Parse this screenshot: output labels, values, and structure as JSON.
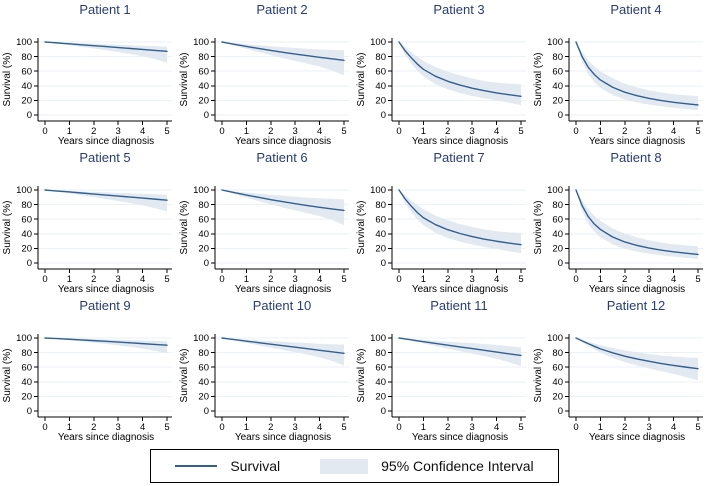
{
  "colors": {
    "line": "#315f90",
    "band": "#e3e9f1",
    "grid": "#e9f2f8",
    "axis": "#000000",
    "text": "#000000",
    "title": "#283c78",
    "background": "#ffffff"
  },
  "legend": {
    "survival_label": "Survival",
    "ci_label": "95% Confidence Interval"
  },
  "chart_data": {
    "type": "line",
    "xlabel": "Years since diagnosis",
    "ylabel": "Survival (%)",
    "xlim": [
      0,
      5
    ],
    "ylim": [
      0,
      100
    ],
    "x_ticks": [
      0,
      1,
      2,
      3,
      4,
      5
    ],
    "y_ticks": [
      0,
      20,
      40,
      60,
      80,
      100
    ],
    "grid": "horizontal",
    "x": [
      0,
      0.25,
      0.5,
      0.75,
      1,
      1.5,
      2,
      2.5,
      3,
      3.5,
      4,
      4.5,
      5
    ],
    "panels": [
      {
        "title": "Patient 1",
        "survival": [
          100,
          99.4,
          98.8,
          98.1,
          97.5,
          96.2,
          95.0,
          93.7,
          92.4,
          91.1,
          89.8,
          88.5,
          87.2
        ],
        "ci_upper": [
          100,
          99.8,
          99.5,
          99.2,
          98.9,
          98.3,
          97.7,
          97.0,
          96.3,
          95.6,
          94.9,
          94.2,
          93.6
        ],
        "ci_lower": [
          100,
          98.9,
          97.8,
          96.7,
          95.6,
          93.4,
          91.1,
          88.7,
          86.2,
          83.5,
          80.5,
          76.5,
          71.5
        ]
      },
      {
        "title": "Patient 2",
        "survival": [
          100,
          98.4,
          96.9,
          95.4,
          93.9,
          91.1,
          88.4,
          85.9,
          83.5,
          81.2,
          79.0,
          76.9,
          74.9
        ],
        "ci_upper": [
          100,
          99.2,
          98.4,
          97.7,
          97.0,
          95.6,
          94.2,
          93.0,
          91.8,
          90.8,
          89.9,
          89.2,
          88.7
        ],
        "ci_lower": [
          100,
          97.5,
          95.1,
          92.8,
          90.5,
          86.2,
          82.0,
          78.0,
          74.1,
          70.3,
          66.4,
          60.9,
          54.5
        ]
      },
      {
        "title": "Patient 3",
        "survival": [
          100,
          88.0,
          78.5,
          69.8,
          62.6,
          53.0,
          46.2,
          41.0,
          36.8,
          33.3,
          30.3,
          27.8,
          25.6
        ],
        "ci_upper": [
          100,
          93.0,
          86.2,
          79.8,
          74.2,
          65.6,
          59.2,
          54.2,
          50.0,
          46.6,
          44.2,
          42.9,
          42.0
        ],
        "ci_lower": [
          100,
          82.6,
          70.4,
          60.8,
          52.8,
          42.2,
          35.2,
          30.1,
          26.1,
          22.8,
          19.9,
          16.8,
          13.5
        ]
      },
      {
        "title": "Patient 4",
        "survival": [
          100,
          80.0,
          65.5,
          55.5,
          48.0,
          38.0,
          31.2,
          26.4,
          22.7,
          19.8,
          17.4,
          15.5,
          13.8
        ],
        "ci_upper": [
          100,
          86.5,
          75.2,
          66.6,
          60.0,
          50.1,
          42.9,
          37.8,
          33.9,
          30.9,
          28.6,
          27.1,
          26.0
        ],
        "ci_lower": [
          100,
          73.2,
          55.8,
          45.0,
          37.2,
          27.4,
          21.2,
          17.2,
          14.2,
          11.8,
          9.9,
          8.2,
          6.4
        ]
      },
      {
        "title": "Patient 5",
        "survival": [
          100,
          99.3,
          98.6,
          98.0,
          97.3,
          95.9,
          94.5,
          93.1,
          91.7,
          90.3,
          88.9,
          87.5,
          86.0
        ],
        "ci_upper": [
          100,
          99.7,
          99.4,
          99.1,
          98.8,
          98.2,
          97.5,
          96.8,
          96.1,
          95.4,
          94.7,
          94.1,
          93.5
        ],
        "ci_lower": [
          100,
          98.8,
          97.6,
          96.4,
          95.2,
          92.8,
          90.3,
          87.7,
          85.0,
          82.1,
          79.0,
          75.2,
          70.5
        ]
      },
      {
        "title": "Patient 6",
        "survival": [
          100,
          98.2,
          96.5,
          94.8,
          93.1,
          89.9,
          86.8,
          84.0,
          81.3,
          78.7,
          76.3,
          74.1,
          72.0
        ],
        "ci_upper": [
          100,
          99.1,
          98.2,
          97.4,
          96.6,
          95.0,
          93.5,
          92.1,
          90.8,
          89.6,
          88.6,
          87.8,
          87.1
        ],
        "ci_lower": [
          100,
          97.2,
          94.6,
          92.0,
          89.5,
          84.8,
          80.3,
          76.1,
          72.1,
          68.2,
          64.2,
          59.3,
          51.8
        ]
      },
      {
        "title": "Patient 7",
        "survival": [
          100,
          87.8,
          78.0,
          69.2,
          62.0,
          52.5,
          45.6,
          40.4,
          36.2,
          32.7,
          29.8,
          27.3,
          25.1
        ],
        "ci_upper": [
          100,
          92.9,
          85.8,
          79.2,
          73.6,
          64.9,
          58.5,
          53.5,
          49.3,
          46.0,
          43.5,
          42.0,
          41.2
        ],
        "ci_lower": [
          100,
          82.3,
          69.8,
          59.8,
          51.8,
          41.3,
          34.3,
          29.3,
          25.3,
          22.0,
          19.1,
          16.2,
          13.3
        ]
      },
      {
        "title": "Patient 8",
        "survival": [
          100,
          78.6,
          63.6,
          53.4,
          46.0,
          35.6,
          28.8,
          24.0,
          20.4,
          17.6,
          15.3,
          13.4,
          11.8
        ],
        "ci_upper": [
          100,
          85.6,
          73.8,
          64.8,
          57.8,
          47.5,
          40.2,
          35.0,
          31.0,
          28.0,
          25.7,
          24.1,
          23.0
        ],
        "ci_lower": [
          100,
          71.2,
          53.8,
          42.8,
          35.2,
          25.5,
          19.5,
          15.5,
          12.6,
          10.4,
          8.7,
          7.2,
          5.5
        ]
      },
      {
        "title": "Patient 9",
        "survival": [
          100,
          99.6,
          99.2,
          98.7,
          98.3,
          97.3,
          96.4,
          95.4,
          94.4,
          93.4,
          92.3,
          91.2,
          90.1
        ],
        "ci_upper": [
          100,
          99.8,
          99.7,
          99.5,
          99.3,
          98.9,
          98.5,
          98.0,
          97.5,
          97.0,
          96.5,
          96.0,
          95.5
        ],
        "ci_lower": [
          100,
          99.2,
          98.5,
          97.7,
          97.0,
          95.3,
          93.6,
          91.8,
          89.9,
          87.8,
          85.4,
          82.5,
          79.0
        ]
      },
      {
        "title": "Patient 10",
        "survival": [
          100,
          98.9,
          97.9,
          96.8,
          95.7,
          93.6,
          91.5,
          89.4,
          87.4,
          85.3,
          83.2,
          81.1,
          79.0
        ],
        "ci_upper": [
          100,
          99.5,
          98.9,
          98.4,
          97.9,
          96.8,
          95.8,
          94.8,
          93.9,
          93.0,
          92.2,
          91.5,
          90.9
        ],
        "ci_lower": [
          100,
          98.3,
          96.6,
          94.9,
          93.3,
          90.0,
          86.8,
          83.7,
          80.5,
          77.2,
          73.5,
          68.5,
          62.3
        ]
      },
      {
        "title": "Patient 11",
        "survival": [
          100,
          98.7,
          97.5,
          96.2,
          95.0,
          92.5,
          90.1,
          87.8,
          85.5,
          83.2,
          80.8,
          78.4,
          76.1
        ],
        "ci_upper": [
          100,
          99.3,
          98.7,
          98.1,
          97.5,
          96.3,
          95.1,
          94.0,
          92.9,
          91.8,
          90.4,
          88.9,
          87.3
        ],
        "ci_lower": [
          100,
          98.0,
          96.1,
          94.2,
          92.4,
          88.8,
          85.3,
          82.0,
          78.6,
          75.2,
          71.6,
          66.9,
          61.5
        ]
      },
      {
        "title": "Patient 12",
        "survival": [
          100,
          96.1,
          92.3,
          88.6,
          85.1,
          79.7,
          75.1,
          71.3,
          68.0,
          65.0,
          62.4,
          60.1,
          58.0
        ],
        "ci_upper": [
          100,
          97.4,
          94.9,
          92.5,
          90.2,
          86.4,
          83.1,
          80.4,
          78.0,
          76.0,
          74.5,
          73.5,
          73.0
        ],
        "ci_lower": [
          100,
          94.6,
          89.3,
          84.5,
          79.9,
          72.9,
          67.0,
          62.3,
          58.2,
          54.5,
          50.8,
          46.4,
          42.0
        ]
      }
    ]
  }
}
